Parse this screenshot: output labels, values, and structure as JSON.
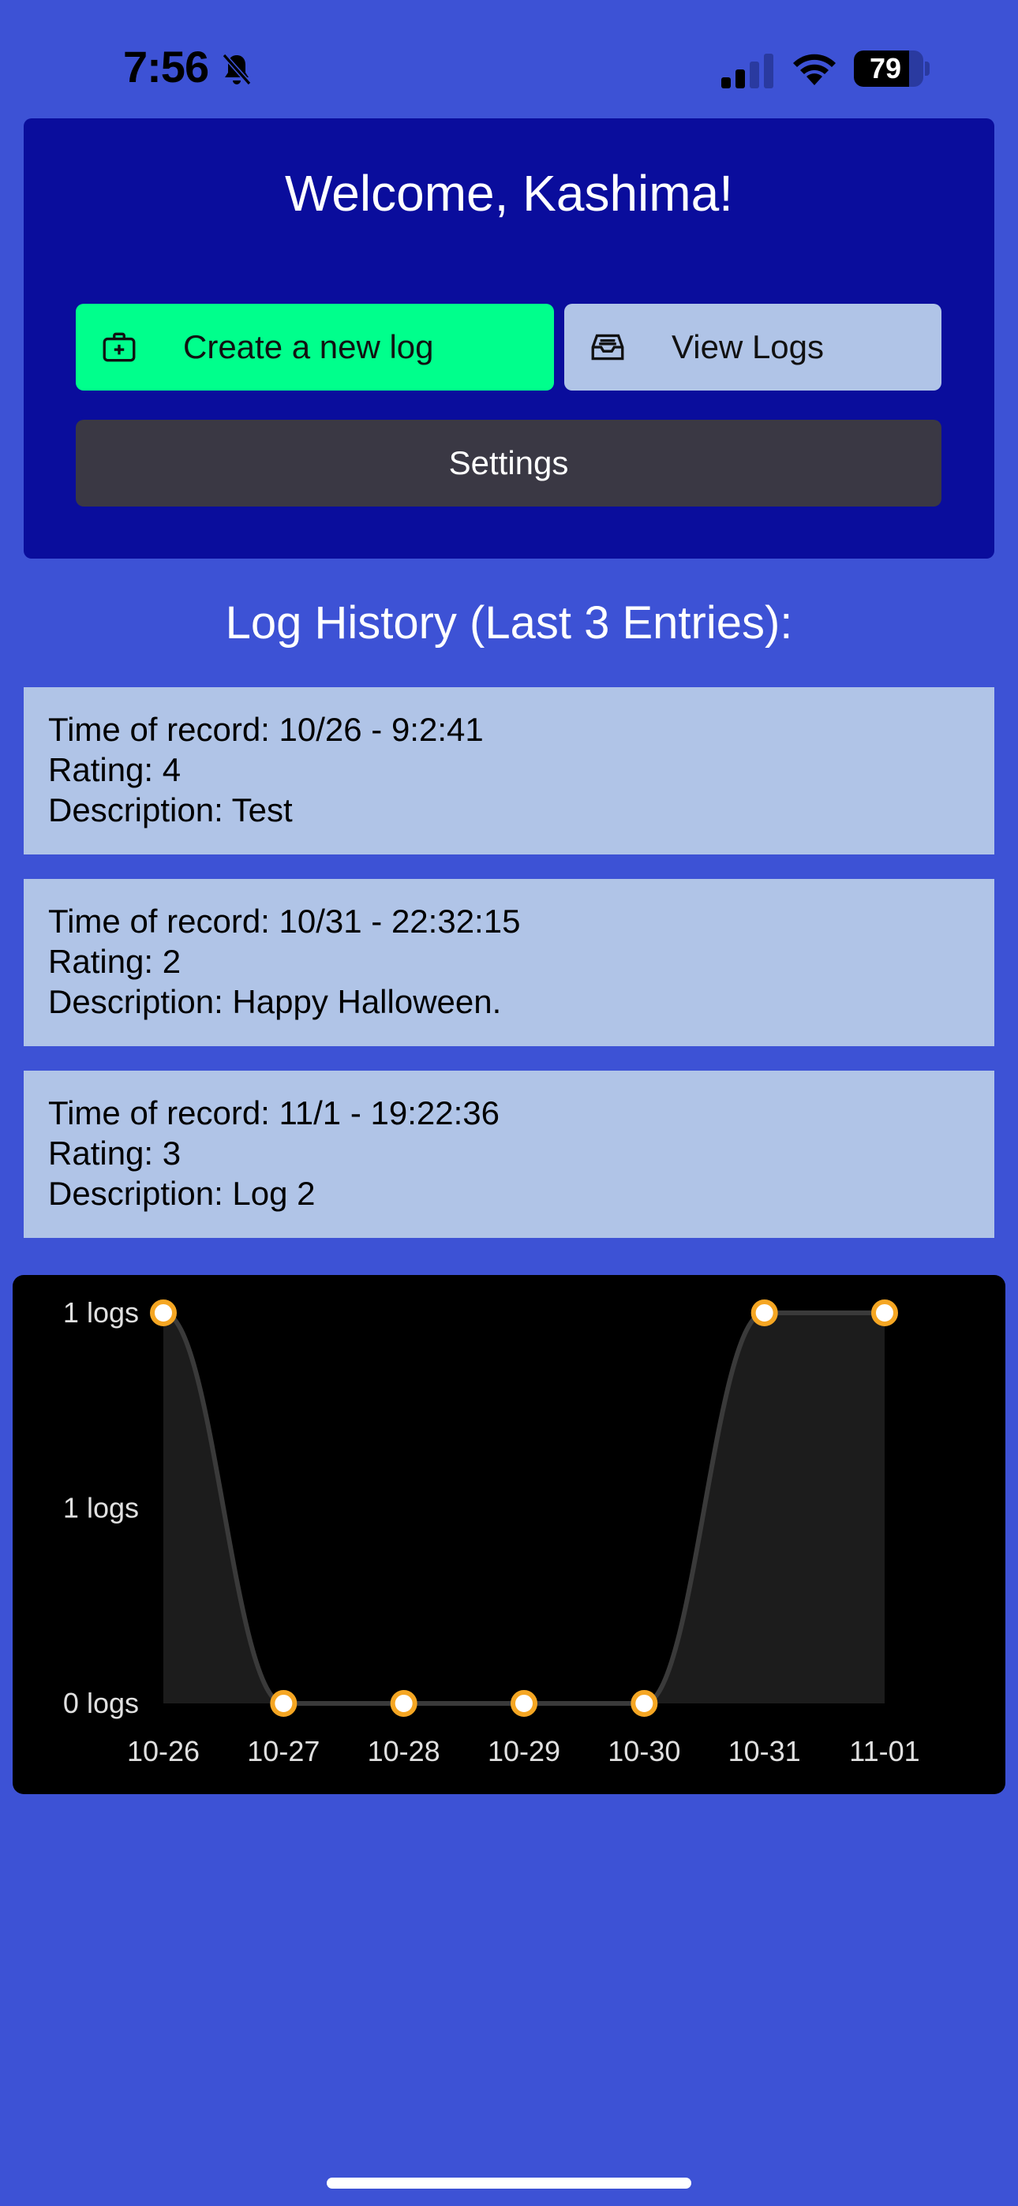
{
  "status_bar": {
    "time": "7:56",
    "battery_level": 79,
    "icons": [
      "bell-slash-icon",
      "cellular-signal-icon",
      "wifi-icon",
      "battery-icon"
    ]
  },
  "header": {
    "welcome": "Welcome, Kashima!",
    "create_label": "Create a new log",
    "view_label": "View Logs",
    "settings_label": "Settings",
    "icons": {
      "create": "medical-bag-icon",
      "view": "inbox-tray-icon"
    }
  },
  "history": {
    "title": "Log History (Last 3 Entries):",
    "entries": [
      {
        "time": "Time of record: 10/26 - 9:2:41",
        "rating": "Rating: 4",
        "description": "Description: Test"
      },
      {
        "time": "Time of record: 10/31 - 22:32:15",
        "rating": "Rating: 2",
        "description": "Description: Happy Halloween."
      },
      {
        "time": "Time of record: 11/1 - 19:22:36",
        "rating": "Rating: 3",
        "description": "Description: Log 2"
      }
    ]
  },
  "chart_data": {
    "type": "area",
    "categories": [
      "10-26",
      "10-27",
      "10-28",
      "10-29",
      "10-30",
      "10-31",
      "11-01"
    ],
    "series": [
      {
        "values": [
          1,
          0,
          0,
          0,
          0,
          1,
          1
        ]
      }
    ],
    "y_ticks": [
      "0 logs",
      "1 logs",
      "1 logs"
    ],
    "ylim": [
      0,
      1
    ],
    "grid": false,
    "colors": {
      "line": "#3a3a3a",
      "fill": "#1c1c1c",
      "point": "#f5a623",
      "point_center": "#ffffff",
      "background": "#000000"
    }
  }
}
